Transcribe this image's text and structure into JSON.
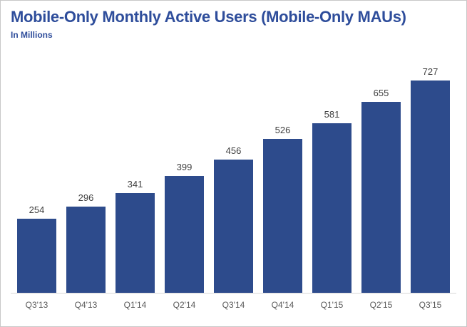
{
  "header": {
    "title": "Mobile-Only Monthly Active Users (Mobile-Only MAUs)",
    "subtitle": "In Millions"
  },
  "colors": {
    "title": "#2e4d9b",
    "bar": "#2d4b8c",
    "value_label": "#404040",
    "axis_label": "#595959",
    "baseline": "#d9d9d9",
    "frame_border": "#c8c8c8",
    "background": "#ffffff"
  },
  "chart_data": {
    "type": "bar",
    "title": "Mobile-Only Monthly Active Users (Mobile-Only MAUs)",
    "subtitle": "In Millions",
    "categories": [
      "Q3'13",
      "Q4'13",
      "Q1'14",
      "Q2'14",
      "Q3'14",
      "Q4'14",
      "Q1'15",
      "Q2'15",
      "Q3'15"
    ],
    "values": [
      254,
      296,
      341,
      399,
      456,
      526,
      581,
      655,
      727
    ],
    "xlabel": "",
    "ylabel": "In Millions",
    "ylim": [
      0,
      760
    ],
    "grid": false,
    "legend": false,
    "data_labels": true,
    "bar_color": "#2d4b8c"
  }
}
